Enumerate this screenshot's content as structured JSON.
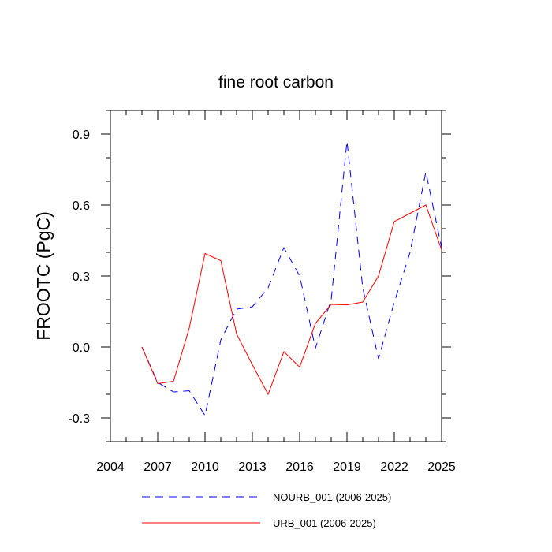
{
  "chart_data": {
    "type": "line",
    "title": "fine root carbon",
    "xlabel": "",
    "ylabel": "FROOTC  (PgC)",
    "xlim": [
      2004,
      2025
    ],
    "ylim": [
      -0.4,
      1.0
    ],
    "x_ticks": [
      2004,
      2007,
      2010,
      2013,
      2016,
      2019,
      2022,
      2025
    ],
    "x_tick_labels": [
      "2004",
      "2007",
      "2010",
      "2013",
      "2016",
      "2019",
      "2022",
      "2025"
    ],
    "y_ticks": [
      -0.3,
      0.0,
      0.3,
      0.6,
      0.9
    ],
    "y_tick_labels": [
      "-0.3",
      "0.0",
      "0.3",
      "0.6",
      "0.9"
    ],
    "grid": false,
    "legend_position": "bottom",
    "x": [
      2006,
      2007,
      2008,
      2009,
      2010,
      2011,
      2012,
      2013,
      2014,
      2015,
      2016,
      2017,
      2018,
      2019,
      2020,
      2021,
      2022,
      2023,
      2024,
      2025
    ],
    "series": [
      {
        "name": "NOURB_001 (2006-2025)",
        "color": "#0000ff",
        "style": "dashed",
        "values": [
          0.0,
          -0.15,
          -0.19,
          -0.185,
          -0.29,
          0.03,
          0.16,
          0.17,
          0.25,
          0.42,
          0.3,
          -0.005,
          0.2,
          0.87,
          0.25,
          -0.05,
          0.19,
          0.4,
          0.74,
          0.42
        ]
      },
      {
        "name": "URB_001 (2006-2025)",
        "color": "#ff0000",
        "style": "solid",
        "values": [
          0.0,
          -0.155,
          -0.145,
          0.08,
          0.395,
          0.365,
          0.055,
          -0.075,
          -0.2,
          -0.02,
          -0.085,
          0.1,
          0.18,
          0.178,
          0.19,
          0.3,
          0.53,
          0.565,
          0.6,
          0.41
        ]
      }
    ]
  }
}
